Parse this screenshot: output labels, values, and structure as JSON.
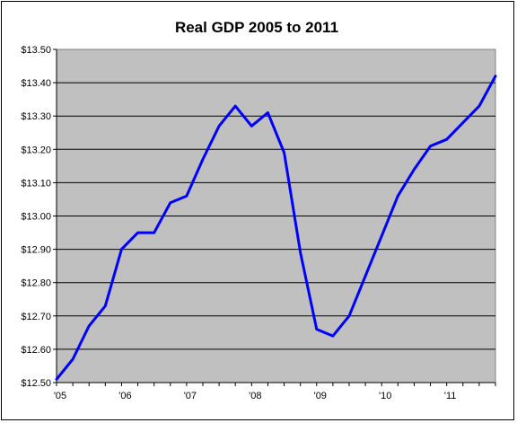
{
  "chart_data": {
    "type": "line",
    "title": "Real GDP 2005 to 2011",
    "xlabel": "",
    "ylabel": "",
    "ylim": [
      12.5,
      13.5
    ],
    "yticks": [
      "$13.50",
      "$13.40",
      "$13.30",
      "$13.20",
      "$13.10",
      "$13.00",
      "$12.90",
      "$12.80",
      "$12.70",
      "$12.60",
      "$12.50"
    ],
    "xticks": [
      "'05",
      "'06",
      "'07",
      "'08",
      "'09",
      "'10",
      "'11"
    ],
    "grid": "horizontal",
    "legend": "none",
    "colors": {
      "line": "#0000ff",
      "plot_bg": "#c0c0c0",
      "gridline": "#000000"
    },
    "series": [
      {
        "x": [
          0,
          0.25,
          0.5,
          0.75,
          1,
          1.25,
          1.5,
          1.75,
          2,
          2.25,
          2.5,
          2.75,
          3,
          3.25,
          3.5,
          3.75,
          4,
          4.25,
          4.5,
          4.75,
          5,
          5.25,
          5.5,
          5.75,
          6,
          6.25,
          6.5,
          6.75
        ],
        "values": [
          12.51,
          12.57,
          12.67,
          12.73,
          12.9,
          12.95,
          12.95,
          13.04,
          13.06,
          13.17,
          13.27,
          13.33,
          13.27,
          13.31,
          13.19,
          12.89,
          12.66,
          12.64,
          12.7,
          12.82,
          12.94,
          13.06,
          13.14,
          13.21,
          13.23,
          13.28,
          13.33,
          13.42
        ]
      }
    ]
  }
}
